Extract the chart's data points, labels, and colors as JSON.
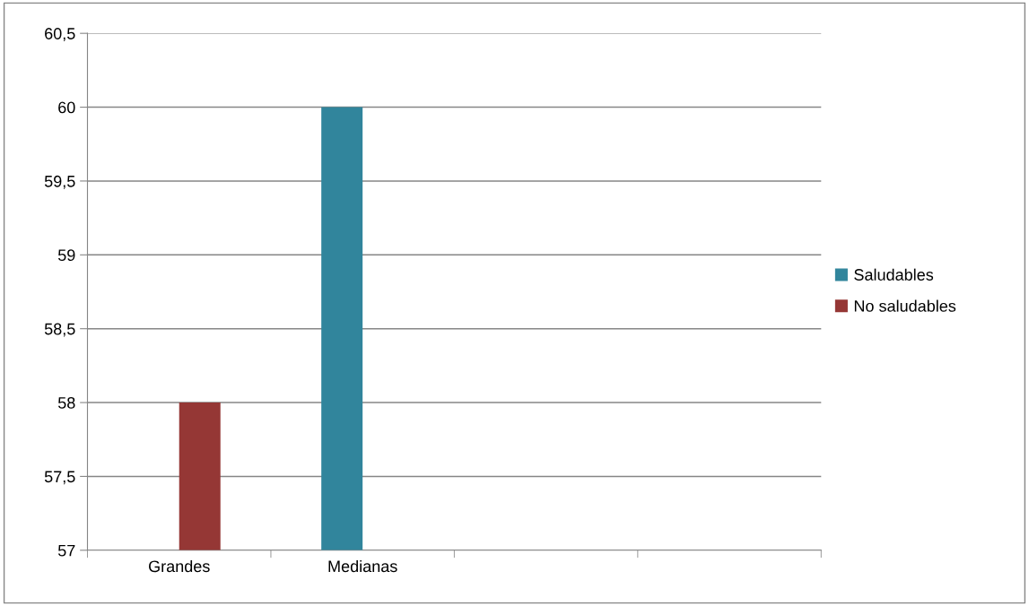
{
  "chart_data": {
    "type": "bar",
    "categories": [
      "Grandes",
      "Medianas",
      null,
      null
    ],
    "series": [
      {
        "name": "Saludables",
        "color": "#31859c",
        "values": [
          null,
          60,
          null,
          null
        ]
      },
      {
        "name": "No saludables",
        "color": "#953735",
        "values": [
          58,
          null,
          null,
          null
        ]
      }
    ],
    "ylim": [
      57,
      60.5
    ],
    "yticks": [
      57,
      {
        "value": 57.5,
        "label": "57,5"
      },
      58,
      {
        "value": 58.5,
        "label": "58,5"
      },
      59,
      {
        "value": 59.5,
        "label": "59,5"
      },
      60,
      {
        "value": 60.5,
        "label": "60,5"
      }
    ],
    "grid": "y",
    "legend": "right"
  }
}
